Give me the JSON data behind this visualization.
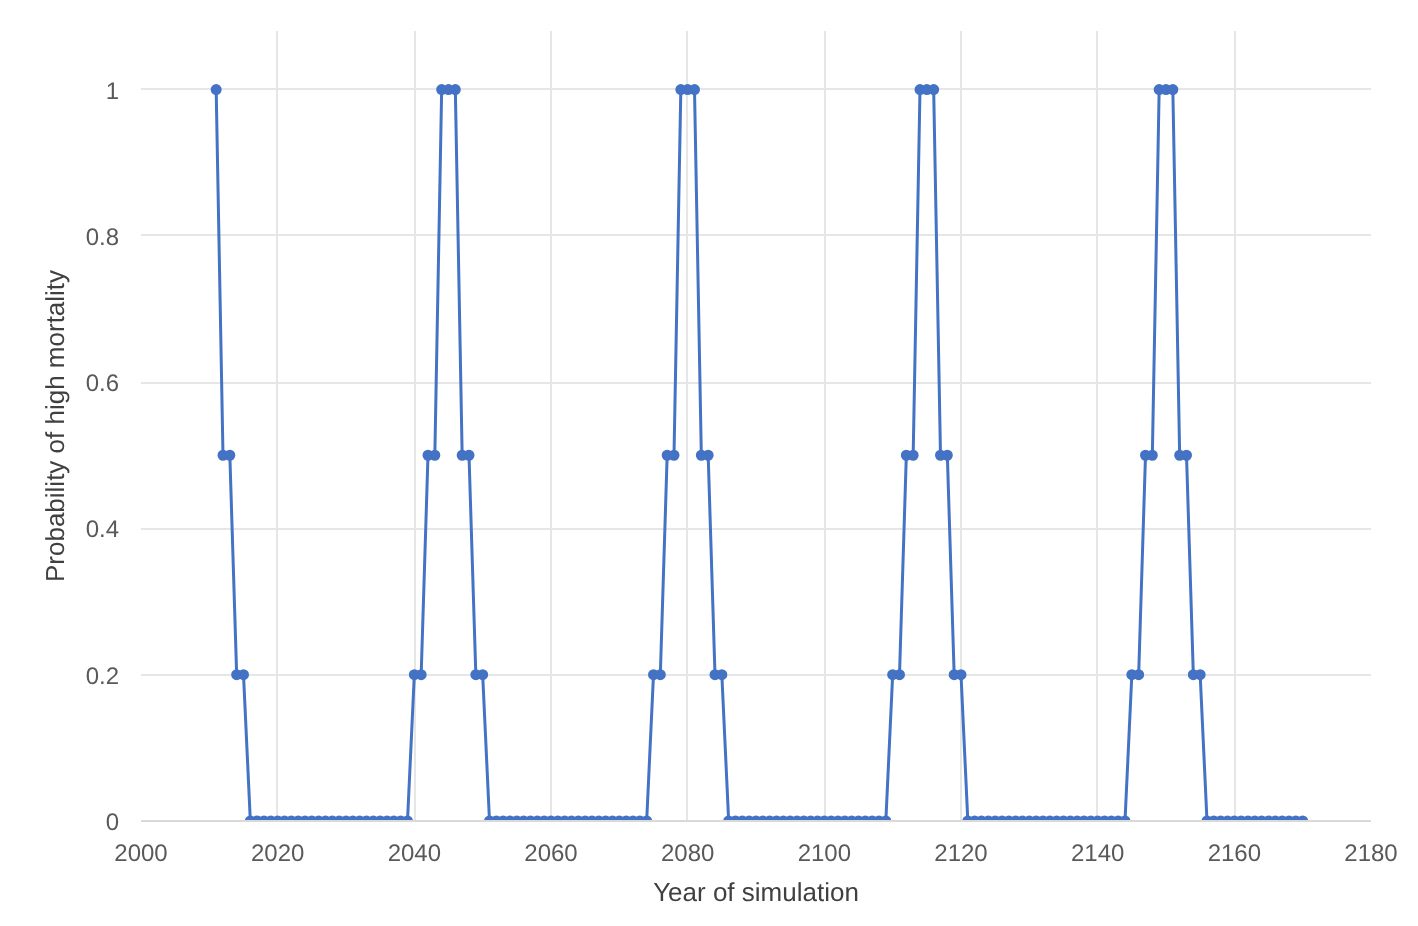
{
  "chart_data": {
    "type": "line",
    "xlabel": "Year of simulation",
    "ylabel": "Probability of high mortality",
    "xlim": [
      2000,
      2180
    ],
    "xticks": [
      2000,
      2020,
      2040,
      2060,
      2080,
      2100,
      2120,
      2140,
      2160,
      2180
    ],
    "ylim": [
      0,
      1.08
    ],
    "yticks": [
      0,
      0.2,
      0.4,
      0.6,
      0.8,
      1
    ],
    "grid": true,
    "marker": "circle",
    "line_style": "solid",
    "series": [
      {
        "color": "#4472c4",
        "x": [
          2011,
          2012,
          2013,
          2014,
          2015,
          2016,
          2017,
          2018,
          2019,
          2020,
          2021,
          2022,
          2023,
          2024,
          2025,
          2026,
          2027,
          2028,
          2029,
          2030,
          2031,
          2032,
          2033,
          2034,
          2035,
          2036,
          2037,
          2038,
          2039,
          2040,
          2041,
          2042,
          2043,
          2044,
          2045,
          2046,
          2047,
          2048,
          2049,
          2050,
          2051,
          2052,
          2053,
          2054,
          2055,
          2056,
          2057,
          2058,
          2059,
          2060,
          2061,
          2062,
          2063,
          2064,
          2065,
          2066,
          2067,
          2068,
          2069,
          2070,
          2071,
          2072,
          2073,
          2074,
          2075,
          2076,
          2077,
          2078,
          2079,
          2080,
          2081,
          2082,
          2083,
          2084,
          2085,
          2086,
          2087,
          2088,
          2089,
          2090,
          2091,
          2092,
          2093,
          2094,
          2095,
          2096,
          2097,
          2098,
          2099,
          2100,
          2101,
          2102,
          2103,
          2104,
          2105,
          2106,
          2107,
          2108,
          2109,
          2110,
          2111,
          2112,
          2113,
          2114,
          2115,
          2116,
          2117,
          2118,
          2119,
          2120,
          2121,
          2122,
          2123,
          2124,
          2125,
          2126,
          2127,
          2128,
          2129,
          2130,
          2131,
          2132,
          2133,
          2134,
          2135,
          2136,
          2137,
          2138,
          2139,
          2140,
          2141,
          2142,
          2143,
          2144,
          2145,
          2146,
          2147,
          2148,
          2149,
          2150,
          2151,
          2152,
          2153,
          2154,
          2155,
          2156,
          2157,
          2158,
          2159,
          2160,
          2161,
          2162,
          2163,
          2164,
          2165,
          2166,
          2167,
          2168,
          2169,
          2170
        ],
        "values": [
          1,
          0.5,
          0.5,
          0.2,
          0.2,
          0,
          0,
          0,
          0,
          0,
          0,
          0,
          0,
          0,
          0,
          0,
          0,
          0,
          0,
          0,
          0,
          0,
          0,
          0,
          0,
          0,
          0,
          0,
          0,
          0.2,
          0.2,
          0.5,
          0.5,
          1,
          1,
          1,
          0.5,
          0.5,
          0.2,
          0.2,
          0,
          0,
          0,
          0,
          0,
          0,
          0,
          0,
          0,
          0,
          0,
          0,
          0,
          0,
          0,
          0,
          0,
          0,
          0,
          0,
          0,
          0,
          0,
          0,
          0.2,
          0.2,
          0.5,
          0.5,
          1,
          1,
          1,
          0.5,
          0.5,
          0.2,
          0.2,
          0,
          0,
          0,
          0,
          0,
          0,
          0,
          0,
          0,
          0,
          0,
          0,
          0,
          0,
          0,
          0,
          0,
          0,
          0,
          0,
          0,
          0,
          0,
          0,
          0.2,
          0.2,
          0.5,
          0.5,
          1,
          1,
          1,
          0.5,
          0.5,
          0.2,
          0.2,
          0,
          0,
          0,
          0,
          0,
          0,
          0,
          0,
          0,
          0,
          0,
          0,
          0,
          0,
          0,
          0,
          0,
          0,
          0,
          0,
          0,
          0,
          0,
          0,
          0.2,
          0.2,
          0.5,
          0.5,
          1,
          1,
          1,
          0.5,
          0.5,
          0.2,
          0.2,
          0,
          0,
          0,
          0,
          0,
          0,
          0,
          0,
          0,
          0,
          0,
          0,
          0,
          0,
          0
        ]
      }
    ]
  }
}
